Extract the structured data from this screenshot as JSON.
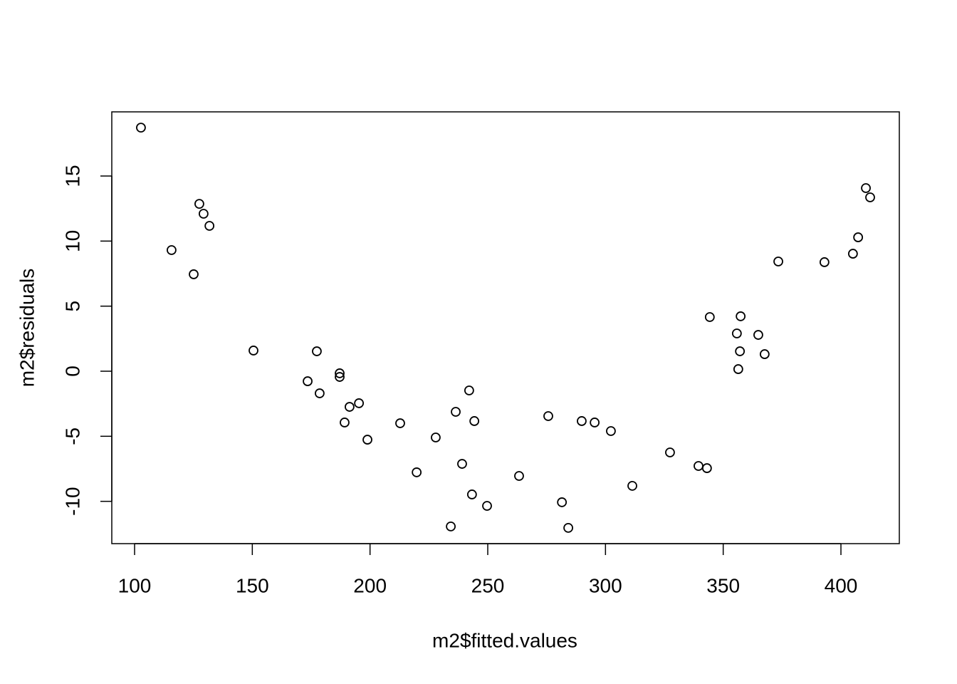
{
  "chart_data": {
    "type": "scatter",
    "x_label": "m2$fitted.values",
    "y_label": "m2$residuals",
    "xlim": [
      90.32,
      424.8
    ],
    "ylim": [
      -13.25,
      19.93
    ],
    "xticks": [
      100,
      150,
      200,
      250,
      300,
      350,
      400
    ],
    "yticks": [
      -10,
      -5,
      0,
      5,
      10,
      15
    ],
    "color": "#000000",
    "x": [
      102.7,
      115.7,
      125.1,
      127.5,
      129.3,
      131.8,
      150.5,
      173.5,
      177.4,
      178.6,
      187.1,
      187.1,
      189.2,
      191.3,
      195.3,
      198.9,
      212.8,
      219.8,
      227.9,
      234.3,
      236.4,
      239.1,
      242.1,
      243.3,
      244.3,
      249.7,
      263.3,
      275.7,
      281.5,
      284.2,
      289.9,
      295.4,
      302.3,
      311.4,
      327.4,
      339.5,
      343.1,
      344.3,
      355.8,
      356.4,
      357.1,
      357.4,
      364.9,
      367.6,
      373.4,
      393.0,
      405.1,
      407.3,
      410.6,
      412.4
    ],
    "values": [
      18.72,
      9.31,
      7.45,
      12.86,
      12.1,
      11.17,
      1.59,
      -0.77,
      1.53,
      -1.7,
      -0.16,
      -0.44,
      -3.94,
      -2.74,
      -2.46,
      -5.26,
      -4.0,
      -7.77,
      -5.09,
      -11.93,
      -3.12,
      -7.12,
      -1.48,
      -9.47,
      -3.83,
      -10.35,
      -8.05,
      -3.45,
      -10.07,
      -12.04,
      -3.83,
      -3.94,
      -4.6,
      -8.81,
      -6.24,
      -7.28,
      -7.45,
      4.16,
      2.9,
      0.16,
      1.53,
      4.22,
      2.79,
      1.31,
      8.43,
      8.38,
      9.03,
      10.29,
      14.07,
      13.36
    ]
  }
}
